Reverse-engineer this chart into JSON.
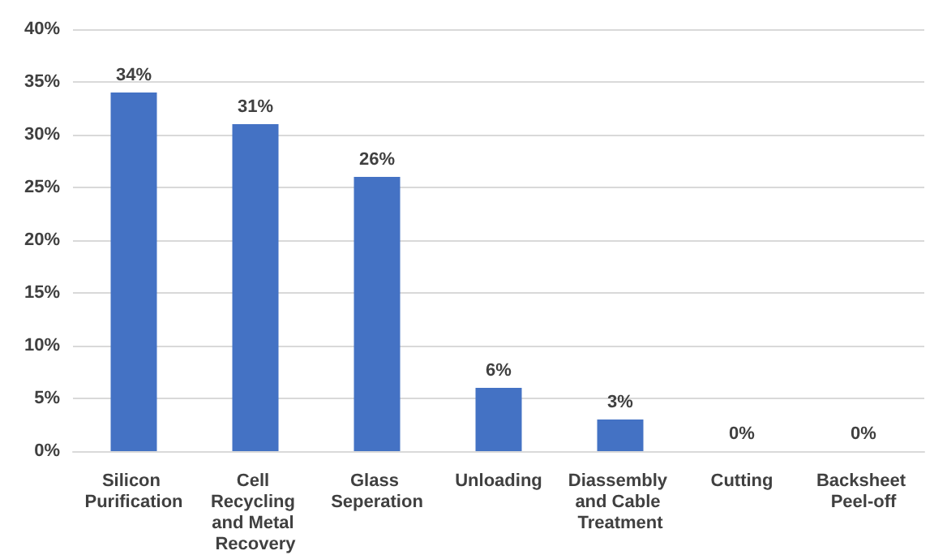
{
  "chart_data": {
    "type": "bar",
    "categories": [
      "Silicon Purification",
      "Cell Recycling and Metal Recovery",
      "Glass Seperation",
      "Unloading",
      "Diassembly and Cable Treatment",
      "Cutting",
      "Backsheet Peel-off"
    ],
    "values": [
      34,
      31,
      26,
      6,
      3,
      0,
      0
    ],
    "value_labels": [
      "34%",
      "31%",
      "26%",
      "6%",
      "3%",
      "0%",
      "0%"
    ],
    "color": "#4472c4",
    "ylim": [
      0,
      40
    ],
    "yticks": [
      {
        "value": 0,
        "label": "0%"
      },
      {
        "value": 5,
        "label": "5%"
      },
      {
        "value": 10,
        "label": "10%"
      },
      {
        "value": 15,
        "label": "15%"
      },
      {
        "value": 20,
        "label": "20%"
      },
      {
        "value": 25,
        "label": "25%"
      },
      {
        "value": 30,
        "label": "30%"
      },
      {
        "value": 35,
        "label": "35%"
      },
      {
        "value": 40,
        "label": "40%"
      }
    ],
    "grid": true
  }
}
